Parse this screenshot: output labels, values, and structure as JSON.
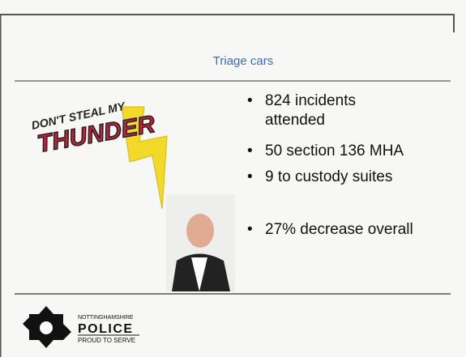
{
  "slide": {
    "title": "Triage cars",
    "bullets": [
      "824 incidents attended",
      "50 section 136 MHA",
      "9 to custody suites",
      "27% decrease overall"
    ],
    "logo": {
      "line1": "DON'T STEAL MY",
      "line2": "THUNDER"
    },
    "footer": {
      "line1": "NOTTINGHAMSHIRE",
      "line2": "POLICE",
      "line3": "PROUD TO SERVE"
    }
  }
}
